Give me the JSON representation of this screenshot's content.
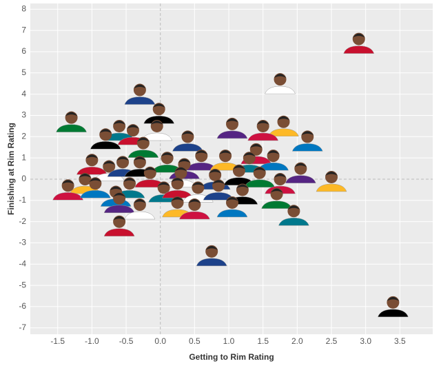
{
  "chart_data": {
    "type": "scatter",
    "xlabel": "Getting to Rim Rating",
    "ylabel": "Finishing at Rim Rating",
    "x": [
      2.9,
      1.75,
      -0.3,
      -0.02,
      -1.3,
      1.05,
      1.8,
      1.5,
      2.15,
      -0.6,
      -0.4,
      -0.05,
      0.4,
      -0.8,
      -0.25,
      0.6,
      0.95,
      1.4,
      1.65,
      1.3,
      -1.0,
      -0.75,
      -0.55,
      -0.3,
      0.1,
      0.35,
      -1.1,
      -1.35,
      -0.95,
      -0.45,
      -0.15,
      0.3,
      0.8,
      1.15,
      1.45,
      2.05,
      2.5,
      1.75,
      -0.65,
      0.05,
      0.25,
      0.55,
      0.85,
      1.2,
      1.7,
      -0.6,
      0.25,
      0.5,
      1.05,
      1.95,
      -0.6,
      -0.3,
      0.75,
      3.4
    ],
    "values": [
      6.5,
      4.6,
      4.1,
      3.2,
      2.8,
      2.5,
      2.6,
      2.4,
      1.9,
      2.4,
      2.2,
      2.4,
      1.9,
      2.0,
      1.6,
      1.0,
      1.0,
      1.3,
      1.0,
      0.9,
      0.8,
      0.5,
      0.7,
      0.7,
      0.9,
      0.6,
      -0.1,
      -0.4,
      -0.3,
      -0.3,
      0.2,
      0.2,
      0.1,
      0.3,
      0.2,
      0.4,
      0.0,
      -0.1,
      -0.7,
      -0.5,
      -0.3,
      -0.5,
      -0.4,
      -0.6,
      -0.8,
      -1.0,
      -1.2,
      -1.3,
      -1.2,
      -1.6,
      -2.1,
      -1.3,
      -3.5,
      -5.9
    ],
    "color": "#7a4e35",
    "xlim": [
      -1.9,
      3.98
    ],
    "ylim": [
      -7.3,
      8.27
    ],
    "xticks": [
      {
        "value": -1.5,
        "label": "-1.5"
      },
      {
        "value": -1.0,
        "label": "-1.0"
      },
      {
        "value": -0.5,
        "label": "-0.5"
      },
      {
        "value": 0,
        "label": "0.0"
      },
      0.5,
      {
        "value": 1.0,
        "label": "1.0"
      },
      1.5,
      {
        "value": 2.0,
        "label": "2.0"
      },
      2.5,
      {
        "value": 3.0,
        "label": "3.0"
      },
      3.5
    ],
    "yticks": [
      -7,
      -6,
      -5,
      -4,
      -3,
      -2,
      -1,
      0,
      1,
      2,
      3,
      4,
      5,
      6,
      7,
      8
    ],
    "grid": true
  }
}
